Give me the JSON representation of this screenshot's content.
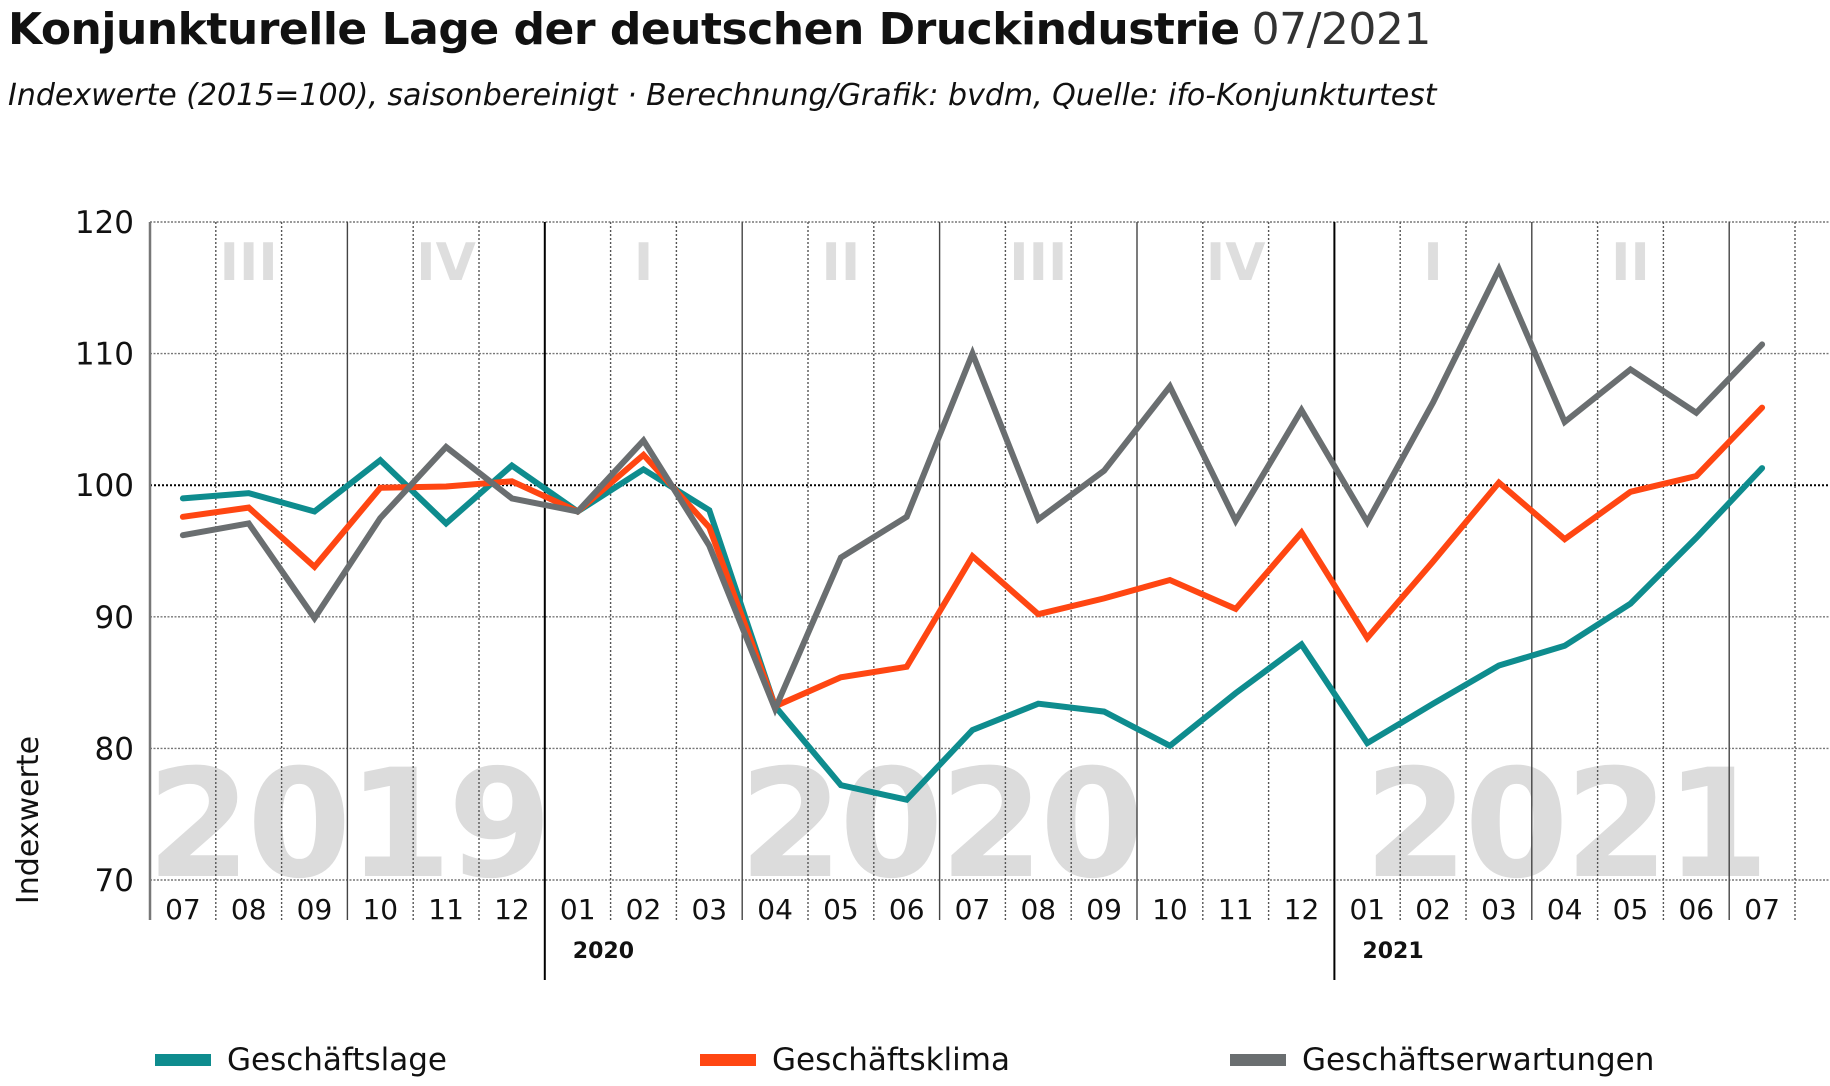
{
  "header": {
    "title": "Konjunkturelle Lage der deutschen Druckindustrie",
    "date": "07/2021",
    "subtitle": "Indexwerte (2015=100), saisonbereinigt · Berechnung/Grafik: bvdm, Quelle: ifo-Konjunkturtest"
  },
  "chart_data": {
    "type": "line",
    "title": "Konjunkturelle Lage der deutschen Druckindustrie 07/2021",
    "subtitle": "Indexwerte (2015=100), saisonbereinigt · Berechnung/Grafik: bvdm, Quelle: ifo-Konjunkturtest",
    "xlabel": "",
    "ylabel": "Indexwerte",
    "ylim": [
      70,
      120
    ],
    "yticks": [
      "120",
      "110",
      "100",
      "90",
      "80",
      "70"
    ],
    "ytick_values": [
      120,
      110,
      100,
      90,
      80,
      70
    ],
    "grid": true,
    "reference_line": 100,
    "x": [
      "07",
      "08",
      "09",
      "10",
      "11",
      "12",
      "01",
      "02",
      "03",
      "04",
      "05",
      "06",
      "07",
      "08",
      "09",
      "10",
      "11",
      "12",
      "01",
      "02",
      "03",
      "04",
      "05",
      "06",
      "07"
    ],
    "year_markers": [
      {
        "label": "2020",
        "index": 6
      },
      {
        "label": "2021",
        "index": 18
      }
    ],
    "quarter_labels": [
      {
        "label": "III",
        "start": 0
      },
      {
        "label": "IV",
        "start": 3
      },
      {
        "label": "I",
        "start": 6
      },
      {
        "label": "II",
        "start": 9
      },
      {
        "label": "III",
        "start": 12
      },
      {
        "label": "IV",
        "start": 15
      },
      {
        "label": "I",
        "start": 18
      },
      {
        "label": "II",
        "start": 21
      }
    ],
    "background_years": [
      {
        "label": "2019",
        "start": 0,
        "end": 6
      },
      {
        "label": "2020",
        "start": 6,
        "end": 18
      },
      {
        "label": "2021",
        "start": 18,
        "end": 25
      }
    ],
    "series": [
      {
        "name": "Geschäftslage",
        "color": "#0E8C8E",
        "values": [
          99.0,
          99.4,
          98.0,
          101.9,
          97.1,
          101.5,
          98.0,
          101.2,
          98.1,
          83.2,
          77.2,
          76.1,
          81.4,
          83.4,
          82.8,
          80.2,
          84.2,
          87.9,
          80.4,
          83.4,
          86.3,
          87.8,
          91.0,
          96.0,
          101.3
        ]
      },
      {
        "name": "Geschäftsklima",
        "color": "#FF4612",
        "values": [
          97.6,
          98.3,
          93.8,
          99.8,
          99.9,
          100.3,
          98.0,
          102.3,
          96.8,
          83.2,
          85.4,
          86.2,
          94.6,
          90.2,
          91.4,
          92.8,
          90.6,
          96.4,
          88.4,
          94.2,
          100.2,
          95.9,
          99.5,
          100.7,
          105.9
        ]
      },
      {
        "name": "Geschäftserwartungen",
        "color": "#6A6E70",
        "values": [
          96.2,
          97.1,
          89.9,
          97.5,
          102.9,
          99.0,
          98.0,
          103.4,
          95.4,
          83.0,
          94.5,
          97.6,
          110.0,
          97.4,
          101.1,
          107.5,
          97.3,
          105.7,
          97.2,
          106.3,
          116.4,
          104.8,
          108.8,
          105.5,
          110.7
        ]
      }
    ],
    "legend": [
      "Geschäftslage",
      "Geschäftsklima",
      "Geschäftserwartungen"
    ],
    "legend_position": "bottom"
  }
}
